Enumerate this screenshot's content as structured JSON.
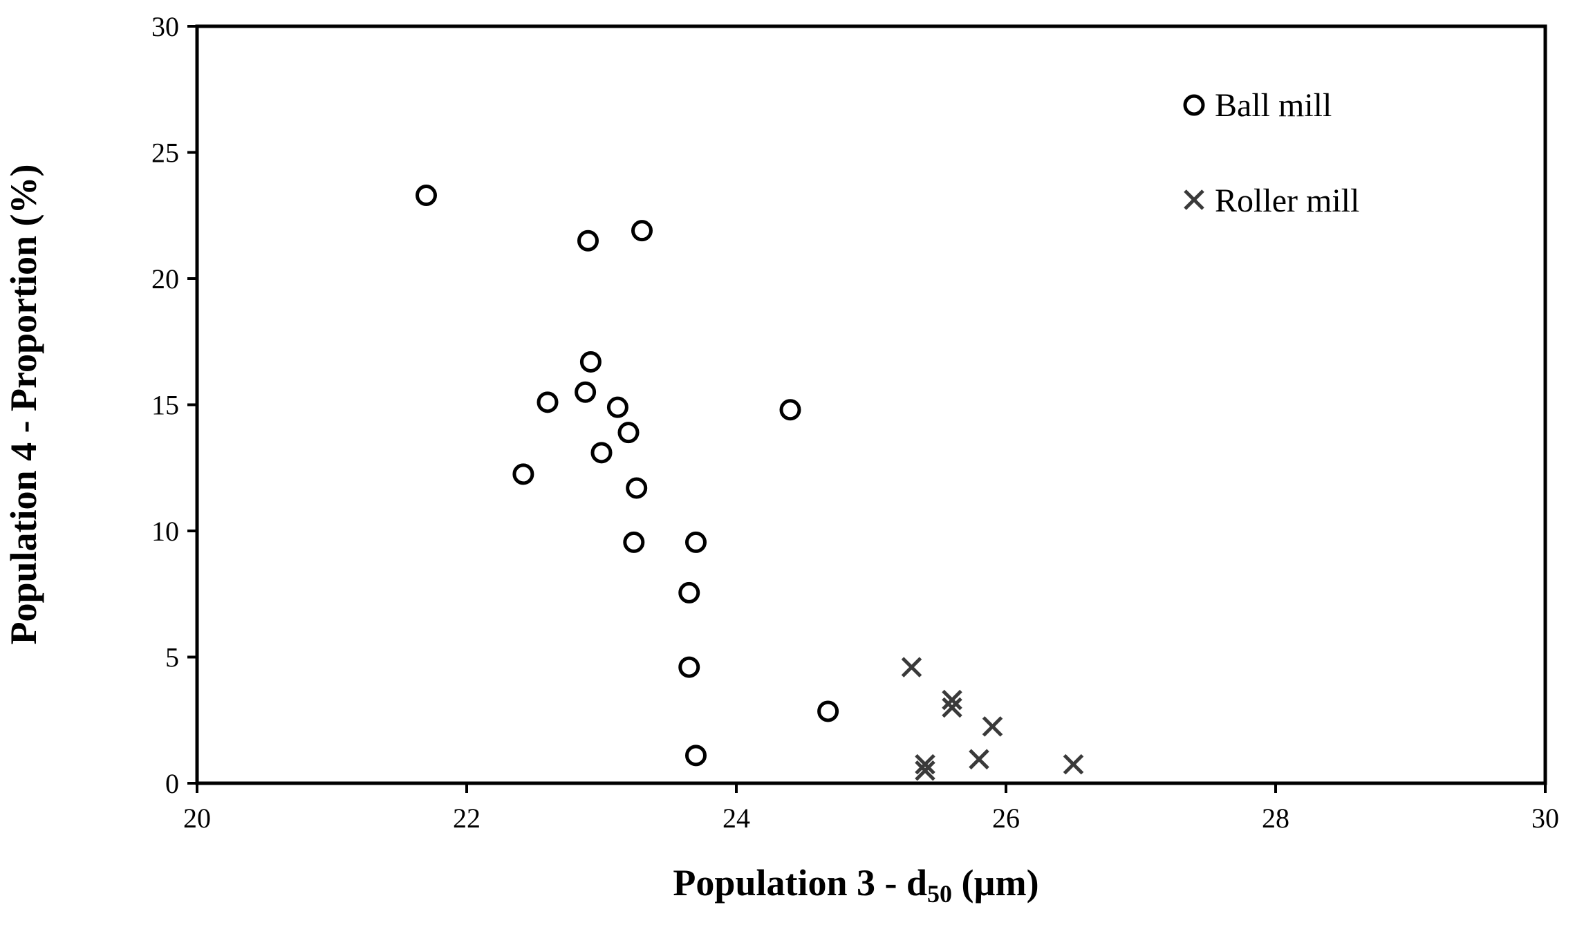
{
  "chart_data": {
    "type": "scatter",
    "title": "",
    "xlabel_main": "Population 3 - d",
    "xlabel_sub": "50",
    "xlabel_unit": " (µm)",
    "ylabel": "Population  4 - Proportion (%)",
    "xlim": [
      20,
      30
    ],
    "ylim": [
      0,
      30
    ],
    "x_ticks": [
      20,
      22,
      24,
      26,
      28,
      30
    ],
    "y_ticks": [
      0,
      5,
      10,
      15,
      20,
      25,
      30
    ],
    "x_tick_labels": [
      "20",
      "22",
      "24",
      "26",
      "28",
      "30"
    ],
    "y_tick_labels": [
      "0",
      "5",
      "10",
      "15",
      "20",
      "25",
      "30"
    ],
    "grid": false,
    "legend_position": "top-right",
    "series": [
      {
        "name": "Ball mill",
        "marker": "circle",
        "color": "#000000",
        "points": [
          [
            21.7,
            23.3
          ],
          [
            22.9,
            21.5
          ],
          [
            23.3,
            21.9
          ],
          [
            22.92,
            16.7
          ],
          [
            22.6,
            15.1
          ],
          [
            22.88,
            15.5
          ],
          [
            23.12,
            14.9
          ],
          [
            23.2,
            13.9
          ],
          [
            23.0,
            13.1
          ],
          [
            22.42,
            12.25
          ],
          [
            23.26,
            11.7
          ],
          [
            23.24,
            9.55
          ],
          [
            23.7,
            9.55
          ],
          [
            23.65,
            7.55
          ],
          [
            23.65,
            4.6
          ],
          [
            24.4,
            14.8
          ],
          [
            24.68,
            2.85
          ],
          [
            23.7,
            1.1
          ]
        ]
      },
      {
        "name": "Roller mill",
        "marker": "x",
        "color": "#3a3a3a",
        "points": [
          [
            25.3,
            4.6
          ],
          [
            25.6,
            3.3
          ],
          [
            25.6,
            3.0
          ],
          [
            25.9,
            2.25
          ],
          [
            25.8,
            0.95
          ],
          [
            25.4,
            0.75
          ],
          [
            25.4,
            0.5
          ],
          [
            26.5,
            0.75
          ]
        ]
      }
    ]
  }
}
